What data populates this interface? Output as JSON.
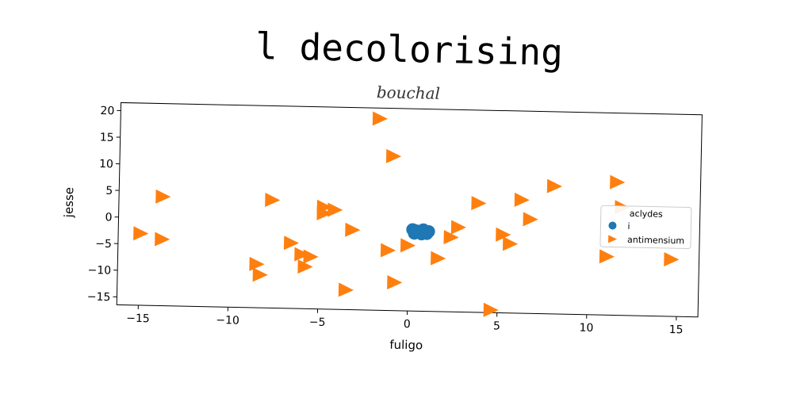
{
  "chart_data": {
    "type": "scatter",
    "title": "l decolorising",
    "subtitle": "bouchal",
    "xlabel": "fuligo",
    "ylabel": "jesse",
    "xlim": [
      -16.2,
      16.2
    ],
    "ylim": [
      -16.5,
      21.5
    ],
    "xticks": [
      -15,
      -10,
      -5,
      0,
      5,
      10,
      15
    ],
    "yticks": [
      -15,
      -10,
      -5,
      0,
      5,
      10,
      15,
      20
    ],
    "xtick_labels": [
      "−15",
      "−10",
      "−5",
      "0",
      "5",
      "10",
      "15"
    ],
    "ytick_labels": [
      "−15",
      "−10",
      "−5",
      "0",
      "5",
      "10",
      "15",
      "20"
    ],
    "grid": false,
    "legend": {
      "title": "aclydes",
      "placement": "center-right"
    },
    "series": [
      {
        "name": "i",
        "marker": "circle",
        "color": "#1f77b4",
        "points": [
          [
            0.2,
            -1.2
          ],
          [
            0.5,
            -1.5
          ],
          [
            0.8,
            -1.2
          ],
          [
            1.1,
            -1.5
          ],
          [
            0.3,
            -1.9
          ],
          [
            0.7,
            -2.0
          ],
          [
            1.0,
            -1.9
          ],
          [
            0.4,
            -1.4
          ],
          [
            0.9,
            -1.6
          ],
          [
            0.6,
            -1.7
          ]
        ]
      },
      {
        "name": "antimensium",
        "marker": "triangle-right",
        "color": "#ff7f0e",
        "points": [
          [
            -15.0,
            -3.0
          ],
          [
            -13.8,
            4.0
          ],
          [
            -13.8,
            -4.0
          ],
          [
            -8.5,
            -8.3
          ],
          [
            -8.3,
            -10.3
          ],
          [
            -7.7,
            3.8
          ],
          [
            -6.6,
            -4.2
          ],
          [
            -6.0,
            -6.3
          ],
          [
            -5.8,
            -8.6
          ],
          [
            -5.5,
            -6.7
          ],
          [
            -4.8,
            2.7
          ],
          [
            -4.8,
            1.5
          ],
          [
            -4.2,
            2.2
          ],
          [
            -3.5,
            -12.8
          ],
          [
            -3.2,
            -1.5
          ],
          [
            -1.8,
            19.5
          ],
          [
            -1.0,
            12.5
          ],
          [
            -1.2,
            -5.2
          ],
          [
            -0.8,
            -11.2
          ],
          [
            -0.1,
            -4.2
          ],
          [
            1.6,
            -6.5
          ],
          [
            2.3,
            -2.5
          ],
          [
            2.7,
            -0.6
          ],
          [
            3.8,
            4.0
          ],
          [
            4.6,
            -16.0
          ],
          [
            5.2,
            -1.8
          ],
          [
            5.6,
            -3.5
          ],
          [
            6.2,
            4.8
          ],
          [
            6.7,
            1.2
          ],
          [
            8.0,
            7.5
          ],
          [
            11.0,
            -5.5
          ],
          [
            11.5,
            8.5
          ],
          [
            11.8,
            3.8
          ],
          [
            14.6,
            -5.8
          ]
        ]
      }
    ]
  }
}
